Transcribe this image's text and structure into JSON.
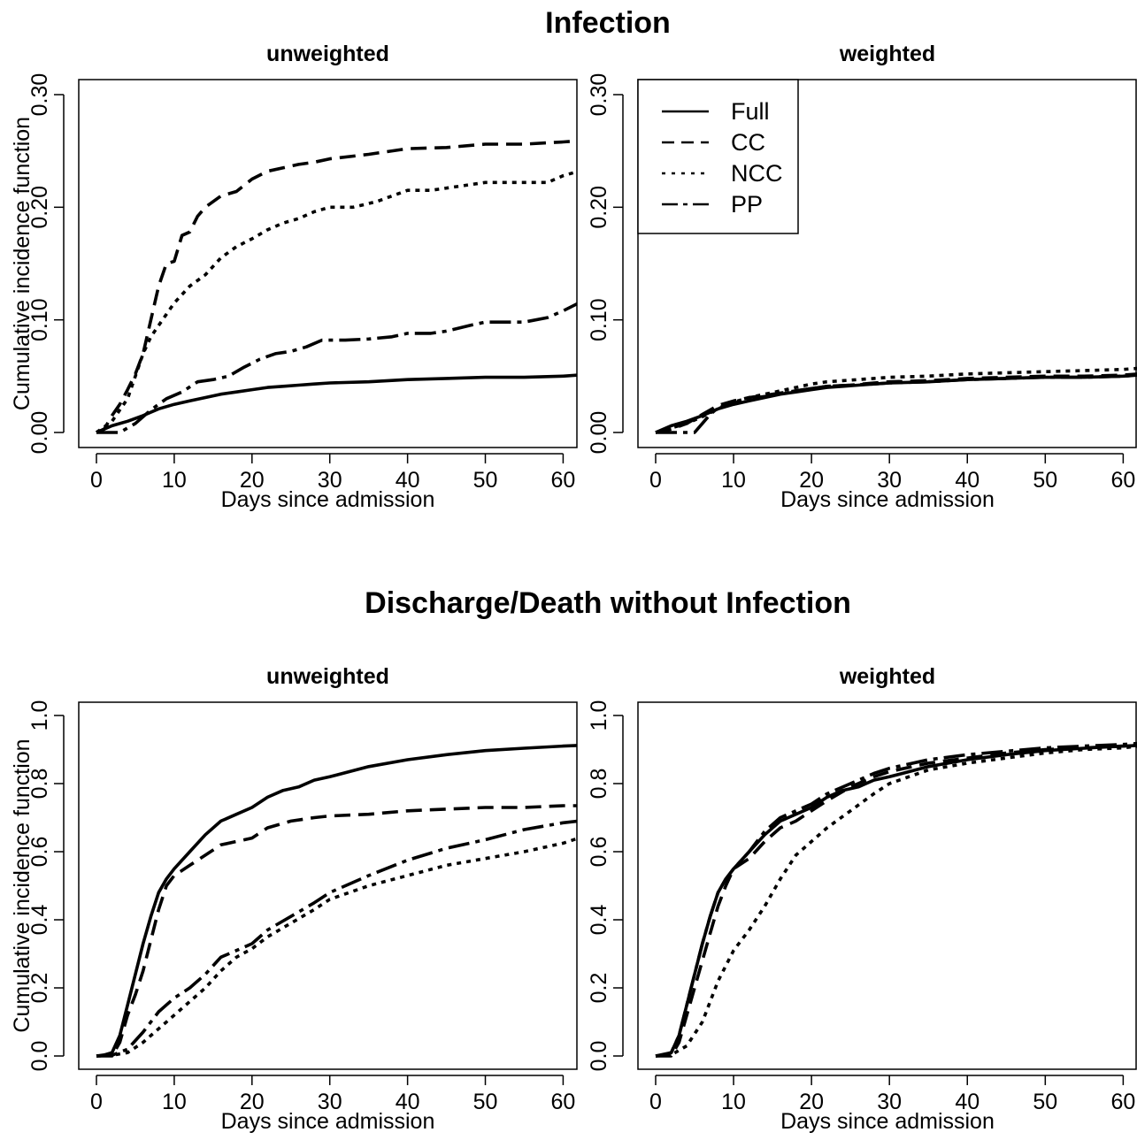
{
  "figure": {
    "titles": [
      "Infection",
      "Discharge/Death without Infection"
    ]
  },
  "chart_data": [
    {
      "type": "line",
      "section_title": "Infection",
      "title": "unweighted",
      "xlabel": "Days since admission",
      "ylabel": "Cumulative incidence function",
      "xlim": [
        0,
        62
      ],
      "ylim": [
        0,
        0.3
      ],
      "xticks": [
        0,
        10,
        20,
        30,
        40,
        50,
        60
      ],
      "yticks": [
        0.0,
        0.1,
        0.2,
        0.3
      ],
      "ytick_labels": [
        "0.00",
        "0.10",
        "0.20",
        "0.30"
      ],
      "legend": false,
      "series": [
        {
          "name": "Full",
          "style": "solid",
          "x": [
            0,
            2,
            4,
            6,
            8,
            10,
            12,
            14,
            16,
            18,
            20,
            22,
            24,
            26,
            28,
            30,
            35,
            40,
            45,
            50,
            55,
            60,
            62
          ],
          "y": [
            0,
            0.006,
            0.01,
            0.015,
            0.021,
            0.025,
            0.028,
            0.031,
            0.034,
            0.036,
            0.038,
            0.04,
            0.041,
            0.042,
            0.043,
            0.044,
            0.045,
            0.047,
            0.048,
            0.049,
            0.049,
            0.05,
            0.051
          ]
        },
        {
          "name": "CC",
          "style": "dashed",
          "x": [
            0,
            1,
            2,
            3,
            4,
            5,
            6,
            7,
            8,
            9,
            10,
            11,
            12,
            13,
            14,
            16,
            18,
            20,
            22,
            24,
            26,
            28,
            30,
            35,
            40,
            45,
            50,
            55,
            60,
            62
          ],
          "y": [
            0,
            0.003,
            0.015,
            0.025,
            0.038,
            0.052,
            0.07,
            0.1,
            0.13,
            0.15,
            0.152,
            0.175,
            0.178,
            0.192,
            0.2,
            0.21,
            0.214,
            0.225,
            0.232,
            0.235,
            0.238,
            0.24,
            0.243,
            0.247,
            0.252,
            0.253,
            0.256,
            0.256,
            0.258,
            0.259
          ]
        },
        {
          "name": "NCC",
          "style": "dotted",
          "x": [
            0,
            2,
            4,
            5,
            6,
            7,
            8,
            9,
            10,
            12,
            14,
            16,
            18,
            20,
            22,
            24,
            26,
            28,
            30,
            33,
            36,
            38,
            40,
            43,
            46,
            50,
            55,
            58,
            60,
            62
          ],
          "y": [
            0,
            0.01,
            0.03,
            0.05,
            0.07,
            0.085,
            0.095,
            0.105,
            0.115,
            0.13,
            0.14,
            0.155,
            0.165,
            0.172,
            0.18,
            0.186,
            0.19,
            0.196,
            0.2,
            0.2,
            0.205,
            0.21,
            0.215,
            0.215,
            0.218,
            0.222,
            0.222,
            0.222,
            0.228,
            0.232
          ]
        },
        {
          "name": "PP",
          "style": "dashdot",
          "x": [
            0,
            3,
            5,
            7,
            9,
            11,
            13,
            15,
            17,
            19,
            21,
            23,
            25,
            27,
            29,
            32,
            35,
            38,
            40,
            43,
            45,
            48,
            50,
            55,
            58,
            60,
            62
          ],
          "y": [
            0,
            0,
            0.008,
            0.02,
            0.03,
            0.036,
            0.045,
            0.047,
            0.05,
            0.058,
            0.065,
            0.07,
            0.072,
            0.076,
            0.082,
            0.082,
            0.083,
            0.085,
            0.088,
            0.088,
            0.09,
            0.095,
            0.098,
            0.098,
            0.102,
            0.108,
            0.115
          ]
        }
      ]
    },
    {
      "type": "line",
      "section_title": "Infection",
      "title": "weighted",
      "xlabel": "Days since admission",
      "ylabel": "",
      "xlim": [
        0,
        62
      ],
      "ylim": [
        0,
        0.3
      ],
      "xticks": [
        0,
        10,
        20,
        30,
        40,
        50,
        60
      ],
      "yticks": [
        0.0,
        0.1,
        0.2,
        0.3
      ],
      "ytick_labels": [
        "0.00",
        "0.10",
        "0.20",
        "0.30"
      ],
      "legend": true,
      "legend_position": "top-left",
      "series": [
        {
          "name": "Full",
          "style": "solid",
          "x": [
            0,
            2,
            4,
            6,
            8,
            10,
            12,
            14,
            16,
            18,
            20,
            22,
            24,
            26,
            28,
            30,
            35,
            40,
            45,
            50,
            55,
            60,
            62
          ],
          "y": [
            0,
            0.006,
            0.01,
            0.015,
            0.021,
            0.025,
            0.028,
            0.031,
            0.034,
            0.036,
            0.038,
            0.04,
            0.041,
            0.042,
            0.043,
            0.044,
            0.045,
            0.047,
            0.048,
            0.049,
            0.049,
            0.05,
            0.051
          ]
        },
        {
          "name": "CC",
          "style": "dashed",
          "x": [
            0,
            2,
            4,
            5,
            6,
            7,
            8,
            10,
            12,
            14,
            16,
            18,
            20,
            22,
            25,
            28,
            30,
            35,
            40,
            45,
            50,
            55,
            60,
            62
          ],
          "y": [
            0,
            0.003,
            0.008,
            0.012,
            0.016,
            0.02,
            0.024,
            0.028,
            0.031,
            0.033,
            0.035,
            0.037,
            0.039,
            0.041,
            0.042,
            0.044,
            0.045,
            0.046,
            0.048,
            0.049,
            0.05,
            0.05,
            0.051,
            0.052
          ]
        },
        {
          "name": "NCC",
          "style": "dotted",
          "x": [
            0,
            2,
            4,
            6,
            8,
            10,
            12,
            14,
            16,
            18,
            20,
            22,
            24,
            26,
            28,
            30,
            35,
            40,
            45,
            50,
            55,
            60,
            62
          ],
          "y": [
            0,
            0.004,
            0.008,
            0.014,
            0.021,
            0.027,
            0.031,
            0.034,
            0.037,
            0.04,
            0.043,
            0.045,
            0.046,
            0.047,
            0.048,
            0.049,
            0.05,
            0.052,
            0.053,
            0.054,
            0.055,
            0.056,
            0.057
          ]
        },
        {
          "name": "PP",
          "style": "dashdot",
          "x": [
            0,
            3,
            5,
            6,
            7,
            8,
            10,
            12,
            14,
            16,
            18,
            20,
            22,
            25,
            28,
            30,
            35,
            40,
            45,
            50,
            55,
            60,
            62
          ],
          "y": [
            0,
            0,
            0,
            0.008,
            0.016,
            0.022,
            0.026,
            0.03,
            0.032,
            0.034,
            0.037,
            0.039,
            0.041,
            0.042,
            0.043,
            0.044,
            0.045,
            0.047,
            0.048,
            0.049,
            0.049,
            0.05,
            0.051
          ]
        }
      ]
    },
    {
      "type": "line",
      "section_title": "Discharge/Death without Infection",
      "title": "unweighted",
      "xlabel": "Days since admission",
      "ylabel": "Cumulative incidence function",
      "xlim": [
        0,
        62
      ],
      "ylim": [
        0,
        1.0
      ],
      "xticks": [
        0,
        10,
        20,
        30,
        40,
        50,
        60
      ],
      "yticks": [
        0.0,
        0.2,
        0.4,
        0.6,
        0.8,
        1.0
      ],
      "ytick_labels": [
        "0.0",
        "0.2",
        "0.4",
        "0.6",
        "0.8",
        "1.0"
      ],
      "legend": false,
      "series": [
        {
          "name": "Full",
          "style": "solid",
          "x": [
            0,
            1,
            2,
            3,
            4,
            5,
            6,
            7,
            8,
            9,
            10,
            12,
            14,
            16,
            18,
            20,
            22,
            24,
            26,
            28,
            30,
            35,
            40,
            45,
            50,
            55,
            60,
            62
          ],
          "y": [
            0,
            0.003,
            0.01,
            0.06,
            0.15,
            0.24,
            0.33,
            0.41,
            0.48,
            0.52,
            0.55,
            0.6,
            0.65,
            0.69,
            0.71,
            0.73,
            0.76,
            0.78,
            0.79,
            0.81,
            0.82,
            0.85,
            0.87,
            0.885,
            0.897,
            0.904,
            0.91,
            0.912
          ]
        },
        {
          "name": "CC",
          "style": "dashed",
          "x": [
            0,
            2,
            3,
            4,
            5,
            6,
            7,
            8,
            9,
            10,
            12,
            14,
            16,
            18,
            20,
            22,
            25,
            28,
            30,
            35,
            40,
            45,
            50,
            55,
            60,
            62
          ],
          "y": [
            0,
            0,
            0.04,
            0.12,
            0.18,
            0.25,
            0.34,
            0.43,
            0.5,
            0.53,
            0.56,
            0.59,
            0.62,
            0.63,
            0.64,
            0.67,
            0.69,
            0.7,
            0.705,
            0.71,
            0.72,
            0.725,
            0.73,
            0.73,
            0.735,
            0.735
          ]
        },
        {
          "name": "NCC",
          "style": "dotted",
          "x": [
            0,
            2,
            4,
            6,
            8,
            10,
            12,
            14,
            16,
            18,
            20,
            22,
            25,
            28,
            30,
            35,
            40,
            45,
            50,
            55,
            60,
            62
          ],
          "y": [
            0,
            0.002,
            0.01,
            0.04,
            0.08,
            0.12,
            0.16,
            0.2,
            0.25,
            0.29,
            0.315,
            0.35,
            0.39,
            0.43,
            0.46,
            0.5,
            0.53,
            0.56,
            0.58,
            0.6,
            0.625,
            0.64
          ]
        },
        {
          "name": "PP",
          "style": "dashdot",
          "x": [
            0,
            2,
            4,
            6,
            8,
            10,
            12,
            14,
            16,
            18,
            20,
            22,
            25,
            28,
            30,
            35,
            40,
            45,
            50,
            55,
            60,
            62
          ],
          "y": [
            0,
            0.002,
            0.02,
            0.07,
            0.13,
            0.17,
            0.2,
            0.24,
            0.29,
            0.31,
            0.33,
            0.37,
            0.41,
            0.45,
            0.48,
            0.53,
            0.575,
            0.61,
            0.635,
            0.665,
            0.685,
            0.69
          ]
        }
      ]
    },
    {
      "type": "line",
      "section_title": "Discharge/Death without Infection",
      "title": "weighted",
      "xlabel": "Days since admission",
      "ylabel": "",
      "xlim": [
        0,
        62
      ],
      "ylim": [
        0,
        1.0
      ],
      "xticks": [
        0,
        10,
        20,
        30,
        40,
        50,
        60
      ],
      "yticks": [
        0.0,
        0.2,
        0.4,
        0.6,
        0.8,
        1.0
      ],
      "ytick_labels": [
        "0.0",
        "0.2",
        "0.4",
        "0.6",
        "0.8",
        "1.0"
      ],
      "legend": false,
      "series": [
        {
          "name": "Full",
          "style": "solid",
          "x": [
            0,
            1,
            2,
            3,
            4,
            5,
            6,
            7,
            8,
            9,
            10,
            12,
            14,
            16,
            18,
            20,
            22,
            24,
            26,
            28,
            30,
            35,
            40,
            45,
            50,
            55,
            60,
            62
          ],
          "y": [
            0,
            0.003,
            0.01,
            0.06,
            0.15,
            0.24,
            0.33,
            0.41,
            0.48,
            0.52,
            0.55,
            0.6,
            0.65,
            0.69,
            0.71,
            0.73,
            0.76,
            0.78,
            0.79,
            0.81,
            0.82,
            0.85,
            0.87,
            0.885,
            0.897,
            0.904,
            0.91,
            0.912
          ]
        },
        {
          "name": "CC",
          "style": "dashed",
          "x": [
            0,
            2,
            3,
            4,
            5,
            6,
            7,
            8,
            9,
            10,
            12,
            14,
            16,
            18,
            20,
            22,
            25,
            28,
            30,
            35,
            40,
            45,
            50,
            55,
            60,
            62
          ],
          "y": [
            0,
            0,
            0.04,
            0.12,
            0.2,
            0.28,
            0.36,
            0.44,
            0.5,
            0.55,
            0.58,
            0.63,
            0.67,
            0.69,
            0.72,
            0.75,
            0.79,
            0.82,
            0.835,
            0.86,
            0.875,
            0.89,
            0.9,
            0.905,
            0.91,
            0.915
          ]
        },
        {
          "name": "NCC",
          "style": "dotted",
          "x": [
            0,
            2,
            4,
            6,
            8,
            10,
            12,
            14,
            16,
            18,
            20,
            22,
            25,
            28,
            30,
            35,
            40,
            45,
            50,
            55,
            60,
            62
          ],
          "y": [
            0,
            0.003,
            0.03,
            0.1,
            0.22,
            0.31,
            0.37,
            0.44,
            0.52,
            0.59,
            0.63,
            0.67,
            0.72,
            0.77,
            0.8,
            0.84,
            0.86,
            0.875,
            0.89,
            0.9,
            0.905,
            0.91
          ]
        },
        {
          "name": "PP",
          "style": "dashdot",
          "x": [
            0,
            2,
            3,
            4,
            5,
            6,
            7,
            8,
            9,
            10,
            12,
            14,
            16,
            18,
            20,
            22,
            25,
            28,
            30,
            35,
            40,
            45,
            50,
            55,
            60,
            62
          ],
          "y": [
            0,
            0.01,
            0.06,
            0.15,
            0.24,
            0.33,
            0.41,
            0.48,
            0.52,
            0.55,
            0.6,
            0.66,
            0.7,
            0.72,
            0.74,
            0.77,
            0.8,
            0.83,
            0.845,
            0.87,
            0.885,
            0.895,
            0.905,
            0.91,
            0.915,
            0.918
          ]
        }
      ]
    }
  ]
}
